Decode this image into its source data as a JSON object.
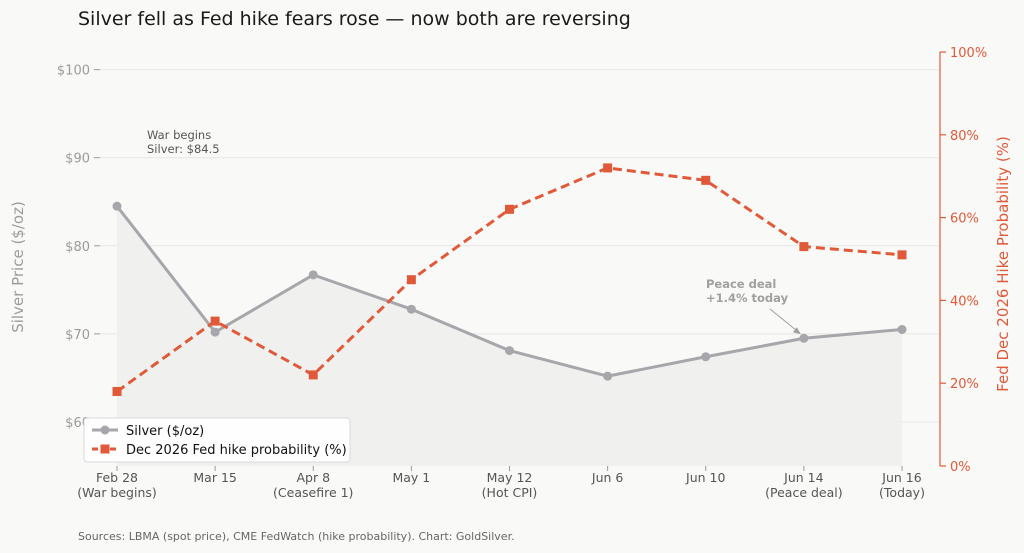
{
  "chart_data": {
    "type": "line",
    "title": "Silver fell as Fed hike fears rose — now both are reversing",
    "categories": [
      [
        "Feb 28",
        "(War begins)"
      ],
      [
        "Mar 15"
      ],
      [
        "Apr 8",
        "(Ceasefire 1)"
      ],
      [
        "May 1"
      ],
      [
        "May 12",
        "(Hot CPI)"
      ],
      [
        "Jun 6"
      ],
      [
        "Jun 10"
      ],
      [
        "Jun 14",
        "(Peace deal)"
      ],
      [
        "Jun 16",
        "(Today)"
      ]
    ],
    "series": [
      {
        "name": "Silver ($/oz)",
        "axis": "left",
        "color": "#a6a6ab",
        "style": "solid",
        "marker": "circle",
        "values": [
          84.5,
          70.2,
          76.7,
          72.8,
          68.1,
          65.2,
          67.4,
          69.5,
          70.5
        ]
      },
      {
        "name": "Dec 2026 Fed hike probability (%)",
        "axis": "right",
        "color": "#e05a3a",
        "style": "dashed",
        "marker": "square",
        "values": [
          18,
          35,
          22,
          45,
          62,
          72,
          69,
          53,
          51
        ]
      }
    ],
    "y_left": {
      "label": "Silver Price ($/oz)",
      "ylim": [
        55,
        102
      ],
      "ticks": [
        60,
        70,
        80,
        90,
        100
      ],
      "tick_labels": [
        "$60",
        "$70",
        "$80",
        "$90",
        "$100"
      ]
    },
    "y_right": {
      "label": "Fed Dec 2026 Hike Probability (%)",
      "ylim": [
        0,
        100
      ],
      "ticks": [
        0,
        20,
        40,
        60,
        80,
        100
      ],
      "tick_labels": [
        "0%",
        "20%",
        "40%",
        "60%",
        "80%",
        "100%"
      ]
    },
    "annotations": [
      {
        "lines": [
          "War begins",
          "Silver: $84.5"
        ],
        "category_index": 0,
        "style": "normal"
      },
      {
        "lines": [
          "Peace deal",
          "+1.4% today"
        ],
        "category_index": 7,
        "style": "bold",
        "arrow": true
      }
    ],
    "legend": {
      "placement": "lower-left"
    },
    "grid": true,
    "source": "Sources: LBMA (spot price), CME FedWatch (hike probability). Chart: GoldSilver."
  }
}
